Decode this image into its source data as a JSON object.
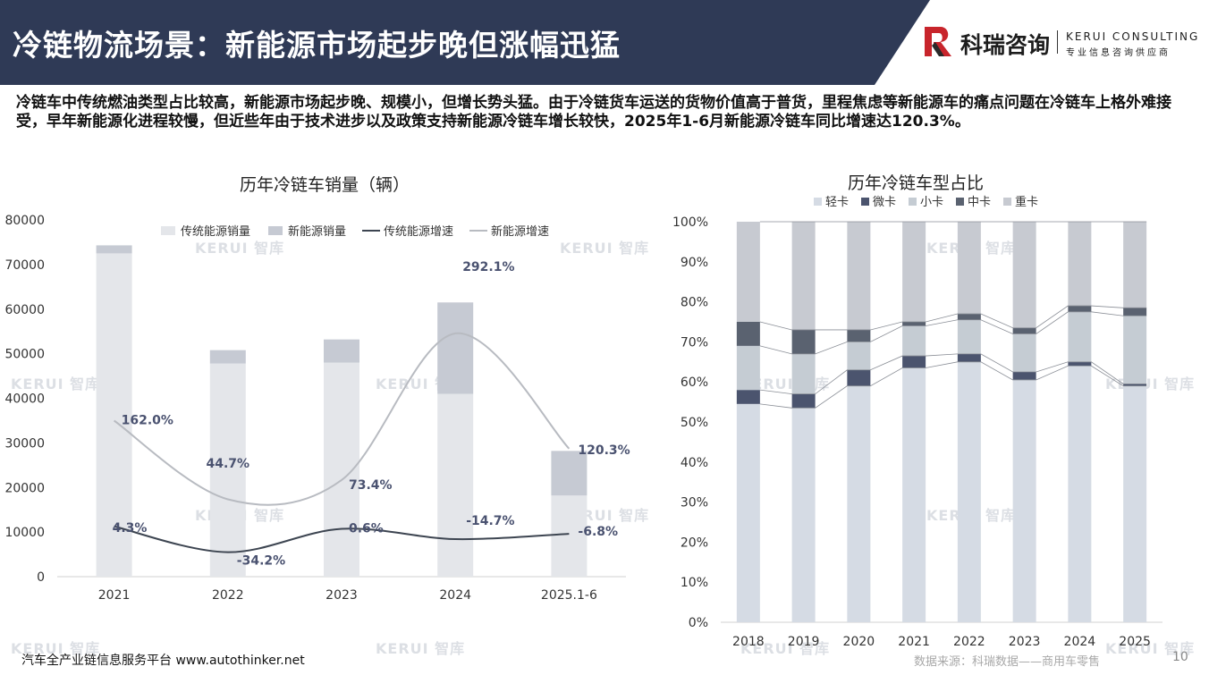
{
  "header": {
    "title": "冷链物流场景：新能源市场起步晚但涨幅迅猛",
    "logo_cn": "科瑞咨询",
    "logo_en": "KERUI CONSULTING",
    "logo_sub": "专业信息咨询供应商",
    "bg_color": "#2f3a56"
  },
  "intro": "冷链车中传统燃油类型占比较高，新能源市场起步晚、规模小，但增长势头猛。由于冷链货车运送的货物价值高于普货，里程焦虑等新能源车的痛点问题在冷链车上格外难接受，早年新能源化进程较慢，但近些年由于技术进步以及政策支持新能源冷链车增长较快，2025年1-6月新能源冷链车同比增速达120.3%。",
  "watermark": "KERUI 智库",
  "footer": {
    "left": "汽车全产业链信息服务平台 www.autothinker.net",
    "source": "数据来源：科瑞数据——商用车零售",
    "page": "10"
  },
  "chart_data": [
    {
      "type": "bar",
      "title": "历年冷链车销量（辆）",
      "stacked": true,
      "categories": [
        "2021",
        "2022",
        "2023",
        "2024",
        "2025.1-6"
      ],
      "ylim": [
        0,
        80000
      ],
      "yticks": [
        0,
        10000,
        20000,
        30000,
        40000,
        50000,
        60000,
        70000,
        80000
      ],
      "legend_position": "top",
      "series": [
        {
          "name": "传统能源销量",
          "kind": "bar",
          "values": [
            72500,
            47800,
            48000,
            41000,
            18200
          ],
          "color": "#e4e6ea"
        },
        {
          "name": "新能源销量",
          "kind": "bar",
          "values": [
            1800,
            3000,
            5200,
            20500,
            10000
          ],
          "color": "#c6cad3"
        },
        {
          "name": "传统能源增速",
          "kind": "line",
          "values": [
            4.3,
            -34.2,
            0.6,
            -14.7,
            -6.8
          ],
          "labels": [
            "4.3%",
            "-34.2%",
            "0.6%",
            "-14.7%",
            "-6.8%"
          ],
          "color": "#3d4551"
        },
        {
          "name": "新能源增速",
          "kind": "line",
          "values": [
            162.0,
            44.7,
            73.4,
            292.1,
            120.3
          ],
          "labels": [
            "162.0%",
            "44.7%",
            "73.4%",
            "292.1%",
            "120.3%"
          ],
          "color": "#b8bbc1"
        }
      ],
      "label_color": "#4a5270"
    },
    {
      "type": "bar",
      "title": "历年冷链车型占比",
      "stacked": true,
      "percent": true,
      "categories": [
        "2018",
        "2019",
        "2020",
        "2021",
        "2022",
        "2023",
        "2024",
        "2025"
      ],
      "ylim": [
        0,
        100
      ],
      "yticks": [
        "0%",
        "10%",
        "20%",
        "30%",
        "40%",
        "50%",
        "60%",
        "70%",
        "80%",
        "90%",
        "100%"
      ],
      "legend_position": "top",
      "series": [
        {
          "name": "轻卡",
          "values": [
            54.5,
            53.5,
            59.0,
            63.5,
            65.0,
            60.5,
            64.0,
            59.0
          ],
          "color": "#d5dbe4"
        },
        {
          "name": "微卡",
          "values": [
            3.5,
            3.5,
            4.0,
            3.0,
            2.0,
            2.0,
            1.0,
            0.5
          ],
          "color": "#4b546e"
        },
        {
          "name": "小卡",
          "values": [
            11.0,
            10.0,
            7.0,
            7.5,
            8.5,
            9.5,
            12.5,
            17.0
          ],
          "color": "#c5ccd3"
        },
        {
          "name": "中卡",
          "values": [
            6.0,
            6.0,
            3.0,
            1.0,
            1.5,
            1.5,
            1.5,
            2.0
          ],
          "color": "#5a6270"
        },
        {
          "name": "重卡",
          "values": [
            25.0,
            27.0,
            27.0,
            25.0,
            23.0,
            26.5,
            21.0,
            21.5
          ],
          "color": "#c7cad1"
        }
      ]
    }
  ]
}
